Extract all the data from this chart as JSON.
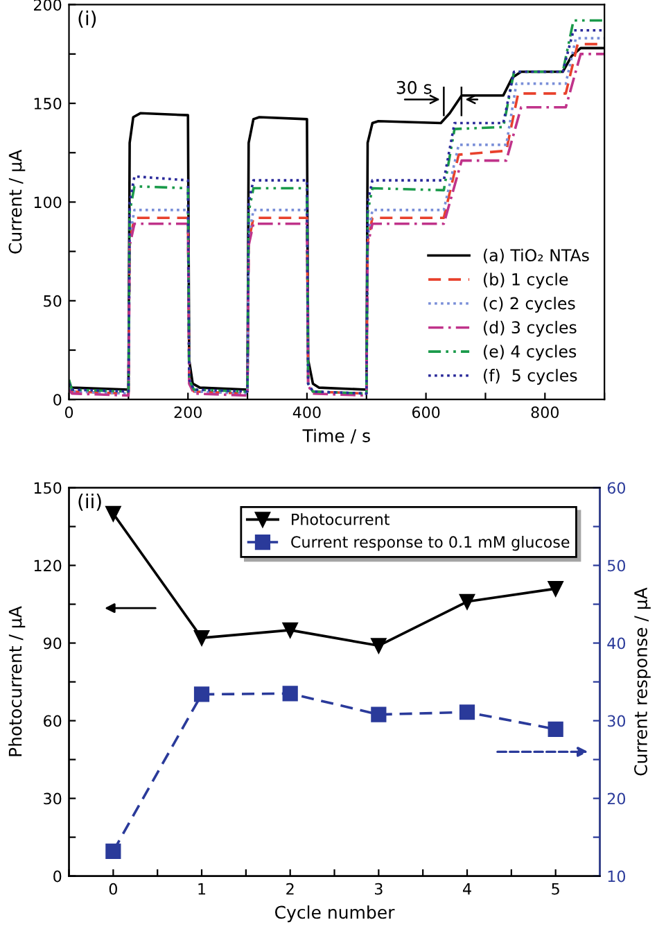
{
  "chart_data": [
    {
      "type": "line",
      "xlabel": "Time / s",
      "ylabel": "Current / μA",
      "xlim": [
        0,
        900
      ],
      "ylim": [
        0,
        200
      ],
      "xticks": [
        0,
        {
          "value": 100,
          "label": null
        },
        200,
        {
          "value": 300,
          "label": null
        },
        400,
        {
          "value": 500,
          "label": null
        },
        600,
        {
          "value": 700,
          "label": null
        },
        800,
        {
          "value": 900,
          "label": null
        }
      ],
      "yticks": [
        0,
        {
          "value": 25,
          "label": null
        },
        50,
        {
          "value": 75,
          "label": null
        },
        100,
        {
          "value": 125,
          "label": null
        },
        150,
        {
          "value": 175,
          "label": null
        },
        200
      ],
      "legend": "bottom right",
      "grid": false,
      "annotations": [
        "(i)",
        "30 s"
      ],
      "series": [
        {
          "name": "(a) TiO₂ NTAs",
          "color": "#000000",
          "line_style": "solid",
          "x": [
            0,
            5,
            100,
            102,
            108,
            120,
            200,
            202,
            208,
            220,
            300,
            302,
            310,
            320,
            400,
            402,
            410,
            420,
            500,
            502,
            510,
            520,
            625,
            640,
            660,
            730,
            745,
            760,
            830,
            845,
            860,
            900
          ],
          "values": [
            7,
            6,
            5,
            130,
            143,
            145,
            144,
            20,
            8,
            6,
            5,
            130,
            142,
            143,
            142,
            20,
            8,
            6,
            5,
            130,
            140,
            141,
            140,
            145,
            154,
            154,
            163,
            166,
            166,
            174,
            178,
            178
          ]
        },
        {
          "name": "(b) 1 cycle",
          "color": "#e8412c",
          "line_style": "dashed",
          "x": [
            0,
            5,
            100,
            102,
            110,
            200,
            202,
            210,
            300,
            302,
            310,
            400,
            402,
            410,
            500,
            502,
            510,
            630,
            655,
            735,
            755,
            835,
            855,
            900
          ],
          "values": [
            6,
            4,
            3,
            80,
            92,
            92,
            10,
            4,
            3,
            80,
            92,
            92,
            8,
            4,
            3,
            80,
            92,
            92,
            124,
            126,
            155,
            155,
            180,
            180
          ]
        },
        {
          "name": "(c) 2 cycles",
          "color": "#7a8fd8",
          "line_style": "dotted",
          "x": [
            0,
            5,
            100,
            102,
            110,
            200,
            202,
            210,
            300,
            302,
            310,
            400,
            402,
            410,
            500,
            502,
            510,
            630,
            655,
            735,
            752,
            835,
            852,
            900
          ],
          "values": [
            6,
            4,
            3,
            82,
            96,
            96,
            10,
            4,
            3,
            82,
            96,
            96,
            8,
            4,
            3,
            82,
            96,
            96,
            129,
            129,
            160,
            160,
            183,
            183
          ]
        },
        {
          "name": "(d) 3 cycles",
          "color": "#c0338a",
          "line_style": "dashdot",
          "x": [
            0,
            5,
            100,
            102,
            110,
            200,
            202,
            210,
            300,
            302,
            310,
            400,
            402,
            410,
            500,
            502,
            510,
            630,
            660,
            735,
            760,
            835,
            860,
            900
          ],
          "values": [
            5,
            3,
            2,
            78,
            89,
            89,
            8,
            3,
            2,
            78,
            89,
            89,
            7,
            3,
            2,
            78,
            89,
            89,
            121,
            121,
            148,
            148,
            175,
            175
          ]
        },
        {
          "name": "(e) 4 cycles",
          "color": "#1a9a4a",
          "line_style": "dashdotdot",
          "x": [
            0,
            5,
            100,
            102,
            110,
            200,
            202,
            210,
            300,
            302,
            310,
            400,
            402,
            410,
            500,
            502,
            510,
            630,
            648,
            730,
            748,
            830,
            848,
            900
          ],
          "values": [
            10,
            5,
            4,
            95,
            108,
            107,
            10,
            5,
            4,
            95,
            107,
            107,
            8,
            4,
            3,
            95,
            107,
            106,
            137,
            138,
            166,
            166,
            192,
            192
          ]
        },
        {
          "name": "(f)  5 cycles",
          "color": "#2a2a9a",
          "line_style": "dotted",
          "x": [
            0,
            5,
            100,
            102,
            110,
            200,
            202,
            210,
            300,
            302,
            310,
            400,
            402,
            410,
            500,
            502,
            510,
            630,
            648,
            730,
            748,
            830,
            848,
            900
          ],
          "values": [
            8,
            5,
            4,
            100,
            113,
            111,
            10,
            5,
            4,
            100,
            111,
            111,
            8,
            4,
            3,
            100,
            111,
            111,
            140,
            140,
            166,
            166,
            187,
            187
          ]
        }
      ]
    },
    {
      "type": "line",
      "xlabel": "Cycle number",
      "ylabel": "Photocurrent / μA",
      "y2label": "Current response / μA",
      "xlim": [
        -0.5,
        5.5
      ],
      "ylim": [
        0,
        150
      ],
      "y2lim": [
        10,
        60
      ],
      "xticks": [
        {
          "value": -0.5,
          "label": null
        },
        0,
        {
          "value": 0.5,
          "label": null
        },
        1,
        {
          "value": 1.5,
          "label": null
        },
        2,
        {
          "value": 2.5,
          "label": null
        },
        3,
        {
          "value": 3.5,
          "label": null
        },
        4,
        {
          "value": 4.5,
          "label": null
        },
        5
      ],
      "yticks": [
        0,
        {
          "value": 15,
          "label": null
        },
        30,
        {
          "value": 45,
          "label": null
        },
        60,
        {
          "value": 75,
          "label": null
        },
        90,
        {
          "value": 105,
          "label": null
        },
        120,
        {
          "value": 135,
          "label": null
        },
        150
      ],
      "y2ticks": [
        10,
        {
          "value": 15,
          "label": null
        },
        20,
        {
          "value": 25,
          "label": null
        },
        30,
        {
          "value": 35,
          "label": null
        },
        40,
        {
          "value": 45,
          "label": null
        },
        50,
        {
          "value": 55,
          "label": null
        },
        60
      ],
      "legend": "top right",
      "grid": false,
      "annotations": [
        "(ii)"
      ],
      "series": [
        {
          "name": "Photocurrent",
          "color": "#000000",
          "marker": "triangle",
          "line_style": "solid",
          "x": [
            0,
            1,
            2,
            3,
            4,
            5
          ],
          "values": [
            140,
            92,
            95,
            89,
            106,
            111
          ]
        },
        {
          "name": "Current response to 0.1 mM glucose",
          "color": "#2a3a9a",
          "marker": "square",
          "line_style": "dashed",
          "axis": "y2",
          "x": [
            0,
            1,
            2,
            3,
            4,
            5
          ],
          "values": [
            13.2,
            33.4,
            33.5,
            30.8,
            31.1,
            28.9
          ]
        }
      ]
    }
  ]
}
